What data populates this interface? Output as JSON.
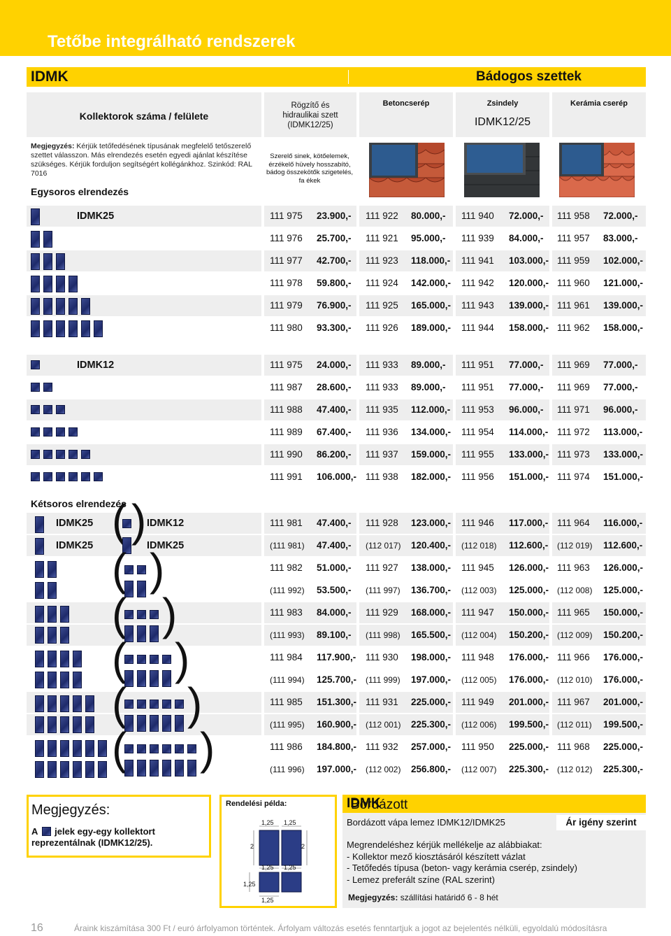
{
  "banner": {
    "title": "Tetőbe integrálható rendszerek"
  },
  "bar": {
    "left": "IDMK",
    "right": "Bádogos szettek"
  },
  "headers": {
    "main": "Kollektorok száma / felülete",
    "mount": "Rögzítő és hidraulikai szett (IDMK12/25)",
    "beton": "Betoncserép",
    "zsindely": "Zsindely",
    "kerami": "Kerámia cserép",
    "idmk_code": "IDMK12/25"
  },
  "note": {
    "label": "Megjegyzés:",
    "text": "Kérjük tetőfedésének típusának megfelelő tetőszerelő szettet válasszon. Más elrendezés esetén egyedi ajánlat készítése szükséges. Kérjük forduljon segítségért kollégánkhoz. Szinkód: RAL 7016"
  },
  "accessories": "Szerelő sinek, kötőelemek, érzékelő hüvely hosszabító, bádog összekötők szigetelés, fa ékek",
  "single_title": "Egysoros elrendezés",
  "double_title": "Kétsoros elrendezés",
  "idmk25_rows": [
    {
      "label": "IDMK25",
      "n": 1,
      "c": [
        "111 975",
        "23.900,-",
        "111 922",
        "80.000,-",
        "111 940",
        "72.000,-",
        "111 958",
        "72.000,-"
      ]
    },
    {
      "label": "",
      "n": 2,
      "c": [
        "111 976",
        "25.700,-",
        "111 921",
        "95.000,-",
        "111 939",
        "84.000,-",
        "111 957",
        "83.000,-"
      ]
    },
    {
      "label": "",
      "n": 3,
      "c": [
        "111 977",
        "42.700,-",
        "111 923",
        "118.000,-",
        "111 941",
        "103.000,-",
        "111 959",
        "102.000,-"
      ]
    },
    {
      "label": "",
      "n": 4,
      "c": [
        "111 978",
        "59.800,-",
        "111 924",
        "142.000,-",
        "111 942",
        "120.000,-",
        "111 960",
        "121.000,-"
      ]
    },
    {
      "label": "",
      "n": 5,
      "c": [
        "111 979",
        "76.900,-",
        "111 925",
        "165.000,-",
        "111 943",
        "139.000,-",
        "111 961",
        "139.000,-"
      ]
    },
    {
      "label": "",
      "n": 6,
      "c": [
        "111 980",
        "93.300,-",
        "111 926",
        "189.000,-",
        "111 944",
        "158.000,-",
        "111 962",
        "158.000,-"
      ]
    }
  ],
  "idmk12_rows": [
    {
      "label": "IDMK12",
      "n": 1,
      "c": [
        "111 975",
        "24.000,-",
        "111 933",
        "89.000,-",
        "111 951",
        "77.000,-",
        "111 969",
        "77.000,-"
      ]
    },
    {
      "label": "",
      "n": 2,
      "c": [
        "111 987",
        "28.600,-",
        "111 933",
        "89.000,-",
        "111 951",
        "77.000,-",
        "111 969",
        "77.000,-"
      ]
    },
    {
      "label": "",
      "n": 3,
      "c": [
        "111 988",
        "47.400,-",
        "111 935",
        "112.000,-",
        "111 953",
        "96.000,-",
        "111 971",
        "96.000,-"
      ]
    },
    {
      "label": "",
      "n": 4,
      "c": [
        "111 989",
        "67.400,-",
        "111 936",
        "134.000,-",
        "111 954",
        "114.000,-",
        "111 972",
        "113.000,-"
      ]
    },
    {
      "label": "",
      "n": 5,
      "c": [
        "111 990",
        "86.200,-",
        "111 937",
        "159.000,-",
        "111 955",
        "133.000,-",
        "111 973",
        "133.000,-"
      ]
    },
    {
      "label": "",
      "n": 6,
      "c": [
        "111 991",
        "106.000,-",
        "111 938",
        "182.000,-",
        "111 956",
        "151.000,-",
        "111 974",
        "151.000,-"
      ]
    }
  ],
  "double_labels": {
    "a": "IDMK25",
    "b": "IDMK25",
    "c": "IDMK12",
    "d": "IDMK25"
  },
  "double_rows": [
    {
      "c": [
        "111 981",
        "47.400,-",
        "111 928",
        "123.000,-",
        "111 946",
        "117.000,-",
        "111 964",
        "116.000,-"
      ]
    },
    {
      "c": [
        "(111 981)",
        "47.400,-",
        "(112 017)",
        "120.400,-",
        "(112 018)",
        "112.600,-",
        "(112 019)",
        "112.600,-"
      ]
    },
    {
      "c": [
        "111 982",
        "51.000,-",
        "111 927",
        "138.000,-",
        "111 945",
        "126.000,-",
        "111 963",
        "126.000,-"
      ]
    },
    {
      "c": [
        "(111 992)",
        "53.500,-",
        "(111 997)",
        "136.700,-",
        "(112 003)",
        "125.000,-",
        "(112 008)",
        "125.000,-"
      ]
    },
    {
      "c": [
        "111 983",
        "84.000,-",
        "111 929",
        "168.000,-",
        "111 947",
        "150.000,-",
        "111 965",
        "150.000,-"
      ]
    },
    {
      "c": [
        "(111 993)",
        "89.100,-",
        "(111 998)",
        "165.500,-",
        "(112 004)",
        "150.200,-",
        "(112 009)",
        "150.200,-"
      ]
    },
    {
      "c": [
        "111 984",
        "117.900,-",
        "111 930",
        "198.000,-",
        "111 948",
        "176.000,-",
        "111 966",
        "176.000,-"
      ]
    },
    {
      "c": [
        "(111 994)",
        "125.700,-",
        "(111 999)",
        "197.000,-",
        "(112 005)",
        "176.000,-",
        "(112 010)",
        "176.000,-"
      ]
    },
    {
      "c": [
        "111 985",
        "151.300,-",
        "111 931",
        "225.000,-",
        "111 949",
        "201.000,-",
        "111 967",
        "201.000,-"
      ]
    },
    {
      "c": [
        "(111 995)",
        "160.900,-",
        "(112 001)",
        "225.300,-",
        "(112 006)",
        "199.500,-",
        "(112 011)",
        "199.500,-"
      ]
    },
    {
      "c": [
        "111 986",
        "184.800,-",
        "111 932",
        "257.000,-",
        "111 950",
        "225.000,-",
        "111 968",
        "225.000,-"
      ]
    },
    {
      "c": [
        "(111 996)",
        "197.000,-",
        "(112 002)",
        "256.800,-",
        "(112 007)",
        "225.300,-",
        "(112 012)",
        "225.300,-"
      ]
    }
  ],
  "note_box": {
    "title": "Megjegyzés:",
    "line1a": "A",
    "line1b": "jelek egy-egy kollektort",
    "line2": "reprezentálnak (IDMK12/25)."
  },
  "order": {
    "title": "Rendelési példa:",
    "d1": "1,25",
    "d2": "1,25",
    "d3": "2",
    "d4": "2",
    "d5": "1,25",
    "d6": "1,25",
    "d7": "1,25",
    "d8": "1,25"
  },
  "bv": {
    "title_a": "Bordázott vápa lemez ",
    "title_b": "IDMK",
    "sub": "Bordázott vápa lemez IDMK12/IDMK25",
    "price": "Ár igény szerint",
    "l1": "Megrendeléshez kérjük mellékelje az alábbiakat:",
    "l2": "- Kollektor mező kiosztásáról készített vázlat",
    "l3": "- Tetőfedés típusa (beton- vagy kerámia cserép, zsindely)",
    "l4": "- Lemez preferált színe (RAL szerint)",
    "foot_a": "Megjegyzés:",
    "foot_b": " szállítási határidő 6 - 8 hét"
  },
  "page_num": "16",
  "footer": "Áraink kiszámítása 300 Ft / euró árfolyamon történtek. Árfolyam változás esetés fenntartjuk a jogot az bejelentés nélküli, egyoldalú módosításra"
}
